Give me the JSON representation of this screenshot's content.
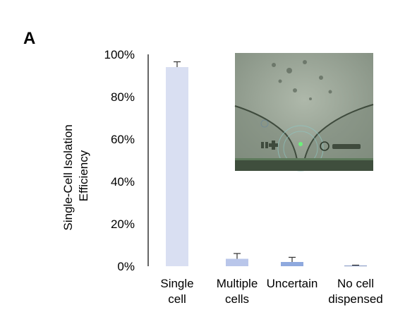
{
  "panel_label": "A",
  "chart_data": {
    "type": "bar",
    "categories": [
      [
        "Single",
        "cell"
      ],
      [
        "Multiple",
        "cells"
      ],
      [
        "Uncertain"
      ],
      [
        "No cell",
        "dispensed"
      ]
    ],
    "values": [
      0.94,
      0.035,
      0.02,
      0.003
    ],
    "errors": [
      0.025,
      0.025,
      0.022,
      0.002
    ],
    "bar_colors": [
      "#d9dff2",
      "#b9c6ea",
      "#8fa9de",
      "#7a8fbf"
    ],
    "ylabel": [
      "Single-Cell Isolation",
      "Efficiency"
    ],
    "ylim": [
      0,
      1
    ],
    "yticks": [
      "0%",
      "20%",
      "40%",
      "60%",
      "80%",
      "100%"
    ],
    "grid": false,
    "inset": "microscope-image"
  }
}
